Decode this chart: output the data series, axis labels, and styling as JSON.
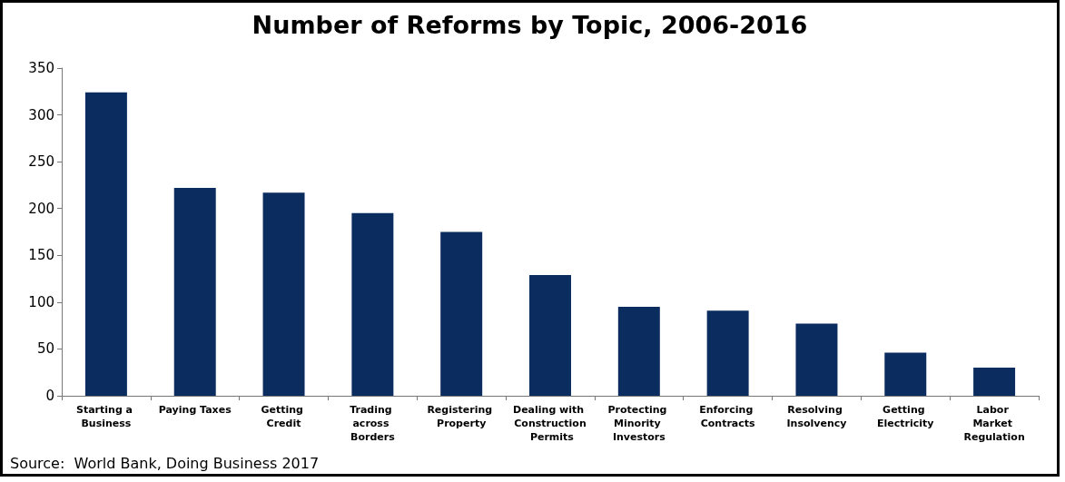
{
  "chart_data": {
    "type": "bar",
    "title": "Number of Reforms by Topic, 2006-2016",
    "categories": [
      "Starting a Business",
      "Paying Taxes",
      "Getting Credit",
      "Trading across Borders",
      "Registering Property",
      "Dealing with Construction Permits",
      "Protecting Minority Investors",
      "Enforcing Contracts",
      "Resolving Insolvency",
      "Getting Electricity",
      "Labor Market Regulation"
    ],
    "values": [
      324,
      222,
      217,
      195,
      175,
      129,
      95,
      91,
      77,
      46,
      30
    ],
    "color": "#0b2c5f",
    "ylim": [
      0,
      350
    ],
    "yticks": [
      0,
      50,
      100,
      150,
      200,
      250,
      300,
      350
    ],
    "grid": false,
    "annotations": [
      "Source:  World Bank, Doing Business 2017"
    ]
  }
}
